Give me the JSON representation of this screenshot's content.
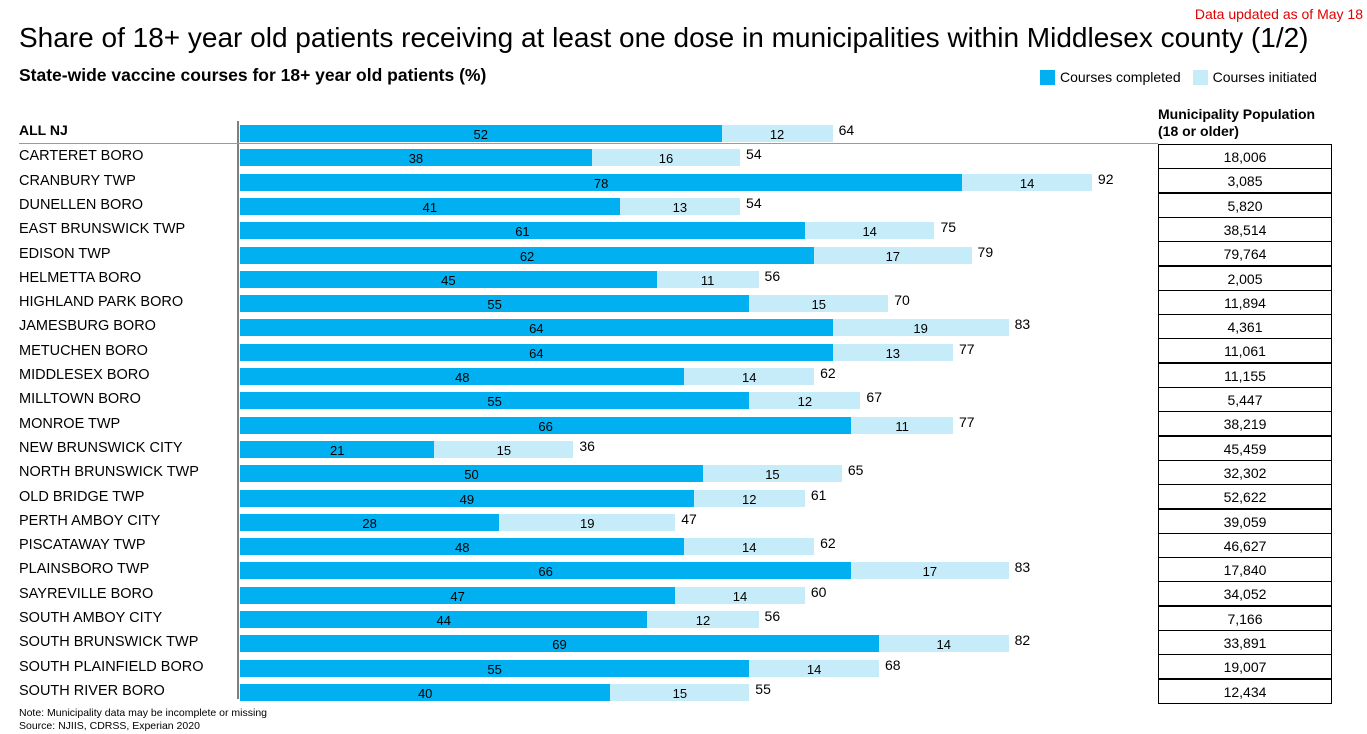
{
  "header": {
    "updated": "Data updated as of May 18",
    "title": "Share of 18+ year old patients receiving at least one dose in municipalities within Middlesex county (1/2)",
    "subtitle": "State-wide vaccine courses for 18+ year old patients (%)"
  },
  "legend": {
    "completed": "Courses completed",
    "initiated": "Courses initiated"
  },
  "colors": {
    "completed": "#00b0f0",
    "initiated": "#c7ecf9",
    "updated_text": "#e00000"
  },
  "population_header": [
    "Municipality Population",
    "(18 or older)"
  ],
  "footnotes": {
    "note": "Note: Municipality data may be incomplete or missing",
    "source": "Source: NJIIS, CDRSS, Experian 2020"
  },
  "chart_data": {
    "type": "bar",
    "orientation": "horizontal",
    "stacked": true,
    "xlim": [
      0,
      100
    ],
    "categories": [
      "ALL NJ",
      "CARTERET BORO",
      "CRANBURY TWP",
      "DUNELLEN BORO",
      "EAST BRUNSWICK TWP",
      "EDISON TWP",
      "HELMETTA BORO",
      "HIGHLAND PARK BORO",
      "JAMESBURG BORO",
      "METUCHEN BORO",
      "MIDDLESEX BORO",
      "MILLTOWN BORO",
      "MONROE TWP",
      "NEW BRUNSWICK CITY",
      "NORTH BRUNSWICK TWP",
      "OLD BRIDGE TWP",
      "PERTH AMBOY CITY",
      "PISCATAWAY TWP",
      "PLAINSBORO TWP",
      "SAYREVILLE BORO",
      "SOUTH AMBOY CITY",
      "SOUTH BRUNSWICK TWP",
      "SOUTH PLAINFIELD BORO",
      "SOUTH RIVER BORO"
    ],
    "series": [
      {
        "name": "Courses completed",
        "values": [
          52,
          38,
          78,
          41,
          61,
          62,
          45,
          55,
          64,
          64,
          48,
          55,
          66,
          21,
          50,
          49,
          28,
          48,
          66,
          47,
          44,
          69,
          55,
          40
        ]
      },
      {
        "name": "Courses initiated",
        "values": [
          12,
          16,
          14,
          13,
          14,
          17,
          11,
          15,
          19,
          13,
          14,
          12,
          11,
          15,
          15,
          12,
          19,
          14,
          17,
          14,
          12,
          14,
          14,
          15
        ]
      }
    ],
    "totals": [
      64,
      54,
      92,
      54,
      75,
      79,
      56,
      70,
      83,
      77,
      62,
      67,
      77,
      36,
      65,
      61,
      47,
      62,
      83,
      60,
      56,
      82,
      68,
      55
    ],
    "population": [
      "18,006",
      "3,085",
      "5,820",
      "38,514",
      "79,764",
      "2,005",
      "11,894",
      "4,361",
      "11,061",
      "11,155",
      "5,447",
      "38,219",
      "45,459",
      "32,302",
      "52,622",
      "39,059",
      "46,627",
      "17,840",
      "34,052",
      "7,166",
      "33,891",
      "19,007",
      "12,434"
    ]
  }
}
